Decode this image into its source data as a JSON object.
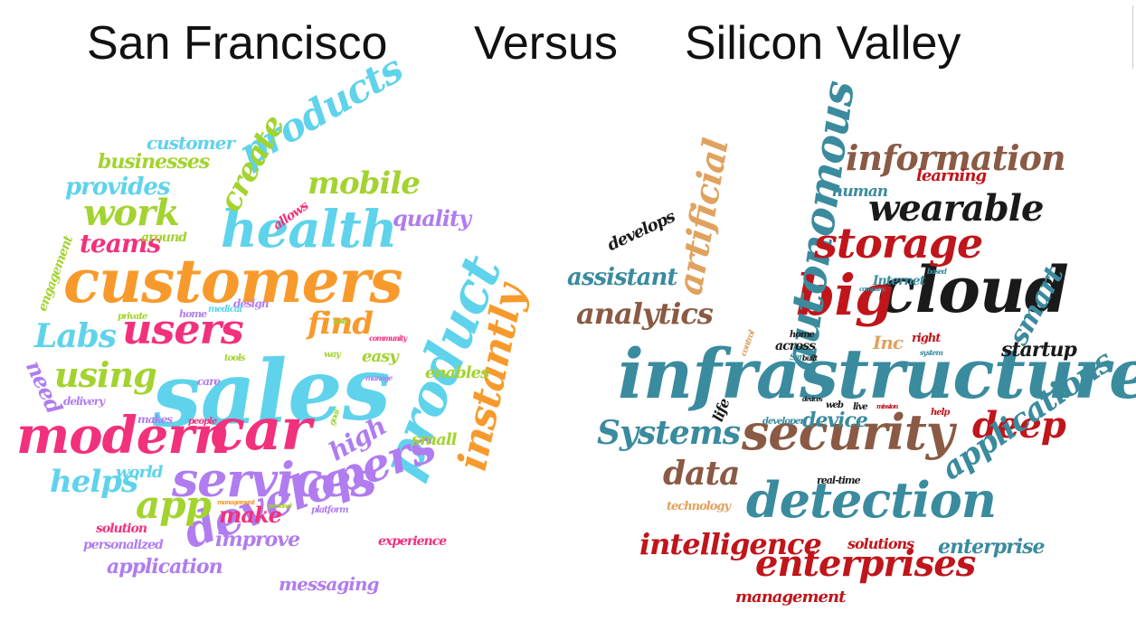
{
  "titles": {
    "left": "San Francisco",
    "middle": "Versus",
    "right": "Silicon Valley"
  },
  "palettes": {
    "san_francisco": [
      "#f2317d",
      "#a3d32f",
      "#5fd3eb",
      "#f89a2b",
      "#b07cf0"
    ],
    "silicon_valley": [
      "#3a8b9e",
      "#c0151b",
      "#1a1a1a",
      "#8a5a44",
      "#e0a25e"
    ]
  },
  "san_francisco_words": [
    "sales",
    "customers",
    "car",
    "modern",
    "product",
    "services",
    "developers",
    "health",
    "users",
    "instantly",
    "products",
    "work",
    "app",
    "using",
    "Labs",
    "find",
    "create",
    "mobile",
    "helps",
    "teams",
    "provides",
    "businesses",
    "customer",
    "quality",
    "high",
    "make",
    "improve",
    "application",
    "messaging",
    "small",
    "enables",
    "easy",
    "need",
    "world",
    "personalized",
    "solution",
    "experience",
    "engagement",
    "allows",
    "around",
    "delivery",
    "makes",
    "platform",
    "design",
    "home",
    "care",
    "private",
    "medical",
    "people",
    "way",
    "tools",
    "community",
    "manage",
    "management",
    "personal",
    "goal",
    "build"
  ],
  "silicon_valley_words": [
    "infrastructure",
    "cloud",
    "big",
    "security",
    "detection",
    "autonomous",
    "storage",
    "wearable",
    "information",
    "enterprises",
    "artificial",
    "deep",
    "applications",
    "intelligence",
    "data",
    "Systems",
    "analytics",
    "smart",
    "assistant",
    "startup",
    "device",
    "enterprise",
    "management",
    "solutions",
    "develops",
    "learning",
    "human",
    "Inc",
    "Internet",
    "life",
    "technology",
    "real-time",
    "across",
    "right",
    "home",
    "developer",
    "web",
    "live",
    "help",
    "control",
    "San",
    "built",
    "based",
    "system",
    "mission",
    "devices",
    "company"
  ]
}
